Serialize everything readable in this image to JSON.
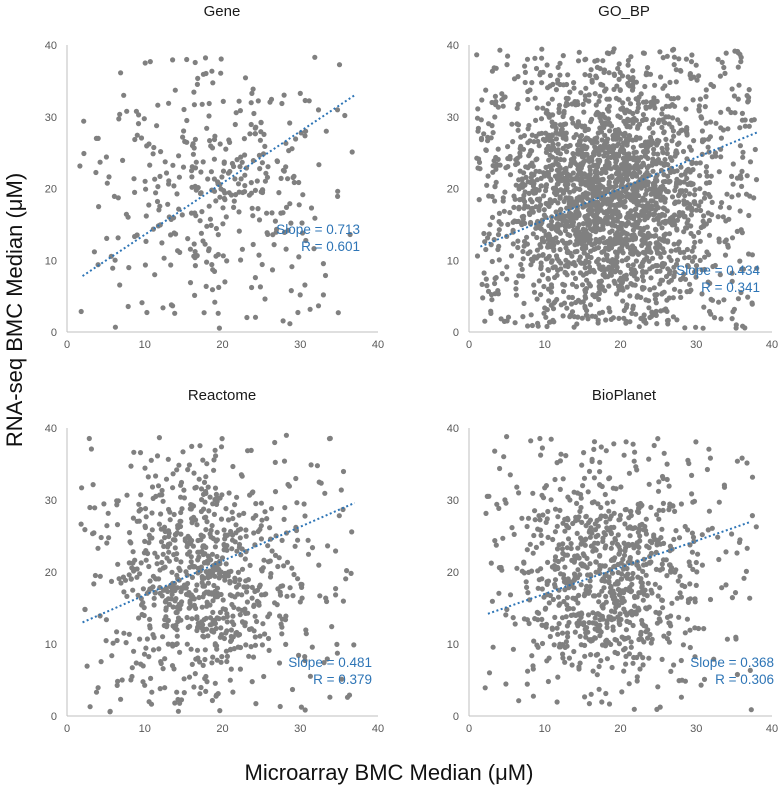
{
  "figure": {
    "ylabel": "RNA-seq BMC Median (μM)",
    "xlabel": "Microarray BMC Median (μM)"
  },
  "chart_data": [
    {
      "type": "scatter",
      "title": "Gene",
      "xlim": [
        0,
        40
      ],
      "ylim": [
        0,
        40
      ],
      "xticks": [
        "0",
        "10",
        "20",
        "30",
        "40"
      ],
      "yticks": [
        "0",
        "10",
        "20",
        "30",
        "40"
      ],
      "grid": false,
      "point_color": "#808080",
      "n_points": 380,
      "trendline": {
        "style": "dotted",
        "color": "#2e75b6",
        "x": [
          2,
          37
        ],
        "y": [
          7.8,
          33.0
        ]
      },
      "annotation": {
        "slope": "Slope = 0.713",
        "r": "R = 0.601"
      },
      "distribution": {
        "cx": 19,
        "cy": 20,
        "sx": 7.5,
        "sy": 8.5,
        "xmin": 1.5,
        "xmax": 37,
        "ymin": 0.5,
        "ymax": 38.5
      }
    },
    {
      "type": "scatter",
      "title": "GO_BP",
      "xlim": [
        0,
        40
      ],
      "ylim": [
        0,
        40
      ],
      "xticks": [
        "0",
        "10",
        "20",
        "30",
        "40"
      ],
      "yticks": [
        "0",
        "10",
        "20",
        "30",
        "40"
      ],
      "grid": false,
      "point_color": "#808080",
      "n_points": 2400,
      "trendline": {
        "style": "dotted",
        "color": "#2e75b6",
        "x": [
          1.5,
          38
        ],
        "y": [
          11.9,
          27.8
        ]
      },
      "annotation": {
        "slope": "Slope = 0.434",
        "r": "R = 0.341"
      },
      "distribution": {
        "cx": 18,
        "cy": 19,
        "sx": 6.5,
        "sy": 8.5,
        "xmin": 1,
        "xmax": 38,
        "ymin": 0.5,
        "ymax": 39.5
      }
    },
    {
      "type": "scatter",
      "title": "Reactome",
      "xlim": [
        0,
        40
      ],
      "ylim": [
        0,
        40
      ],
      "xticks": [
        "0",
        "10",
        "20",
        "30",
        "40"
      ],
      "yticks": [
        "0",
        "10",
        "20",
        "30",
        "40"
      ],
      "grid": false,
      "point_color": "#808080",
      "n_points": 850,
      "trendline": {
        "style": "dotted",
        "color": "#2e75b6",
        "x": [
          2,
          37
        ],
        "y": [
          13.0,
          29.6
        ]
      },
      "annotation": {
        "slope": "Slope = 0.481",
        "r": "R = 0.379"
      },
      "distribution": {
        "cx": 17.5,
        "cy": 19,
        "sx": 6,
        "sy": 7.5,
        "xmin": 1.5,
        "xmax": 37,
        "ymin": 0.5,
        "ymax": 39
      }
    },
    {
      "type": "scatter",
      "title": "BioPlanet",
      "xlim": [
        0,
        40
      ],
      "ylim": [
        0,
        40
      ],
      "xticks": [
        "0",
        "10",
        "20",
        "30",
        "40"
      ],
      "yticks": [
        "0",
        "10",
        "20",
        "30",
        "40"
      ],
      "grid": false,
      "point_color": "#808080",
      "n_points": 900,
      "trendline": {
        "style": "dotted",
        "color": "#2e75b6",
        "x": [
          2.5,
          37
        ],
        "y": [
          14.2,
          26.9
        ]
      },
      "annotation": {
        "slope": "Slope = 0.368",
        "r": "R = 0.306"
      },
      "distribution": {
        "cx": 18,
        "cy": 19.5,
        "sx": 6,
        "sy": 7.5,
        "xmin": 2,
        "xmax": 38,
        "ymin": 0.5,
        "ymax": 39
      }
    }
  ]
}
